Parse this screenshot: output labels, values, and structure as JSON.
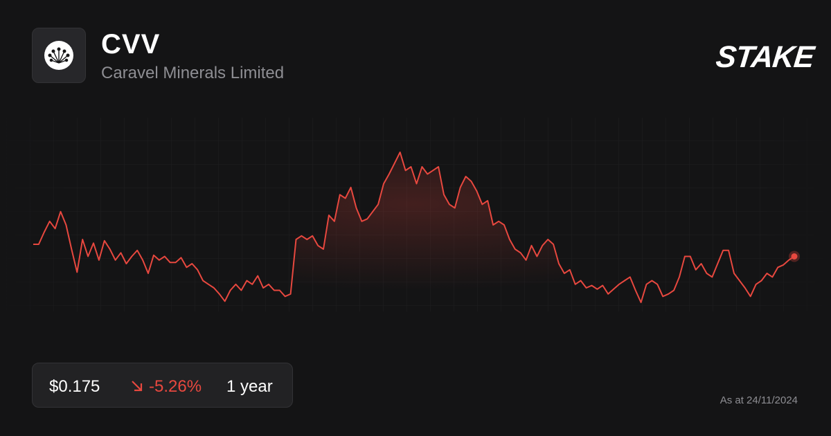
{
  "header": {
    "ticker": "CVV",
    "company": "Caravel Minerals Limited",
    "brand": "STAKE"
  },
  "footer": {
    "price": "$0.175",
    "change": "-5.26%",
    "period": "1 year",
    "as_at": "As at 24/11/2024"
  },
  "chart_data": {
    "type": "line",
    "color": "#e8483f",
    "values": [
      0.185,
      0.185,
      0.195,
      0.204,
      0.198,
      0.212,
      0.201,
      0.181,
      0.162,
      0.189,
      0.175,
      0.186,
      0.172,
      0.188,
      0.181,
      0.172,
      0.178,
      0.169,
      0.175,
      0.18,
      0.172,
      0.161,
      0.176,
      0.172,
      0.175,
      0.17,
      0.17,
      0.174,
      0.166,
      0.169,
      0.164,
      0.155,
      0.152,
      0.149,
      0.144,
      0.138,
      0.147,
      0.152,
      0.147,
      0.155,
      0.152,
      0.159,
      0.149,
      0.152,
      0.147,
      0.147,
      0.142,
      0.144,
      0.189,
      0.192,
      0.189,
      0.192,
      0.184,
      0.181,
      0.209,
      0.204,
      0.226,
      0.223,
      0.232,
      0.215,
      0.204,
      0.206,
      0.212,
      0.218,
      0.235,
      0.243,
      0.252,
      0.261,
      0.246,
      0.249,
      0.235,
      0.249,
      0.243,
      0.246,
      0.249,
      0.226,
      0.218,
      0.215,
      0.232,
      0.241,
      0.237,
      0.229,
      0.218,
      0.221,
      0.201,
      0.204,
      0.201,
      0.189,
      0.181,
      0.178,
      0.172,
      0.184,
      0.175,
      0.184,
      0.189,
      0.185,
      0.169,
      0.161,
      0.164,
      0.152,
      0.155,
      0.149,
      0.151,
      0.148,
      0.151,
      0.144,
      0.148,
      0.152,
      0.155,
      0.158,
      0.147,
      0.137,
      0.152,
      0.155,
      0.152,
      0.142,
      0.144,
      0.147,
      0.158,
      0.175,
      0.175,
      0.164,
      0.169,
      0.161,
      0.158,
      0.169,
      0.18,
      0.18,
      0.161,
      0.155,
      0.149,
      0.142,
      0.152,
      0.155,
      0.161,
      0.158,
      0.166,
      0.168,
      0.172,
      0.175
    ]
  }
}
